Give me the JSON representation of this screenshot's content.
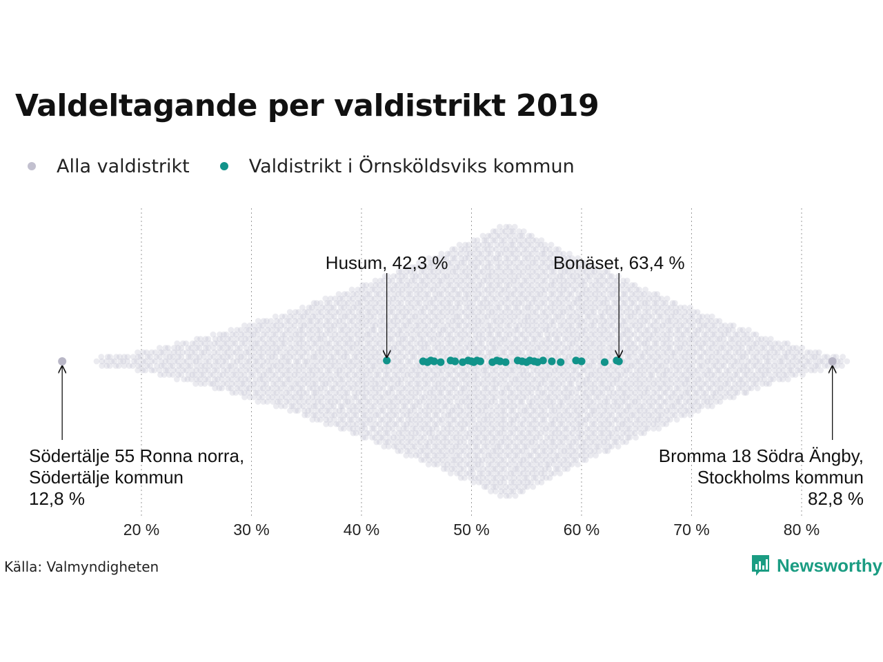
{
  "title": "Valdeltagande per valdistrikt 2019",
  "legend": [
    {
      "label": "Alla valdistrikt",
      "color": "#c2c0cf"
    },
    {
      "label": "Valdistrikt i Örnsköldsviks kommun",
      "color": "#11938a"
    }
  ],
  "source": "Källa: Valmyndigheten",
  "brand": "Newsworthy",
  "chart_data": {
    "type": "scatter",
    "subtype": "beeswarm",
    "x_range": [
      10,
      85
    ],
    "x_ticks": [
      20,
      30,
      40,
      50,
      60,
      70,
      80
    ],
    "x_tick_labels": [
      "20 %",
      "30 %",
      "40 %",
      "50 %",
      "60 %",
      "70 %",
      "80 %"
    ],
    "grid": "vertical dotted",
    "series": [
      {
        "name": "Alla valdistrikt",
        "color": "#c2c0cf",
        "distribution": "dense beeswarm of all districts, roughly 12.8 % to 82.8 %, peak near 53 %"
      },
      {
        "name": "Valdistrikt i Örnsköldsviks kommun",
        "color": "#11938a",
        "values": [
          42.3,
          45.6,
          46.0,
          46.3,
          46.6,
          47.2,
          48.1,
          48.5,
          49.2,
          49.7,
          50.0,
          50.2,
          50.5,
          50.8,
          51.9,
          52.3,
          52.6,
          53.1,
          54.2,
          54.6,
          55.0,
          55.3,
          55.7,
          56.0,
          56.5,
          57.3,
          58.1,
          59.5,
          60.0,
          62.1,
          63.2,
          63.4
        ]
      }
    ],
    "annotations": [
      {
        "text": "Husum, 42,3 %",
        "x": 42.3
      },
      {
        "text": "Bonäset, 63,4 %",
        "x": 63.4
      },
      {
        "lines": [
          "Södertälje 55 Ronna norra,",
          "Södertälje kommun",
          "12,8 %"
        ],
        "x": 12.8
      },
      {
        "lines": [
          "Bromma 18 Södra Ängby,",
          "Stockholms kommun",
          "82,8 %"
        ],
        "x": 82.8
      }
    ]
  }
}
